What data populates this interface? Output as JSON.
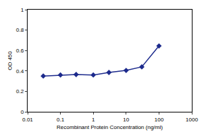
{
  "chart_data": {
    "type": "line",
    "x_label": "Recombinant Protein Concentration (ng/ml)",
    "y_label": "OD 450",
    "x": [
      0.03,
      0.1,
      0.3,
      1,
      3,
      10,
      30,
      100
    ],
    "values": [
      0.35,
      0.36,
      0.365,
      0.36,
      0.385,
      0.405,
      0.44,
      0.645
    ],
    "color": "#1c2a8c",
    "marker": "diamond",
    "line_style": "solid",
    "log": "x",
    "xlim": [
      0.01,
      1000
    ],
    "xticks": [
      0.01,
      0.1,
      1,
      10,
      100,
      1000
    ],
    "ylim": [
      0,
      1
    ],
    "yticks": [
      0,
      0.2,
      0.4,
      0.6,
      0.8,
      1
    ],
    "grid": false
  }
}
